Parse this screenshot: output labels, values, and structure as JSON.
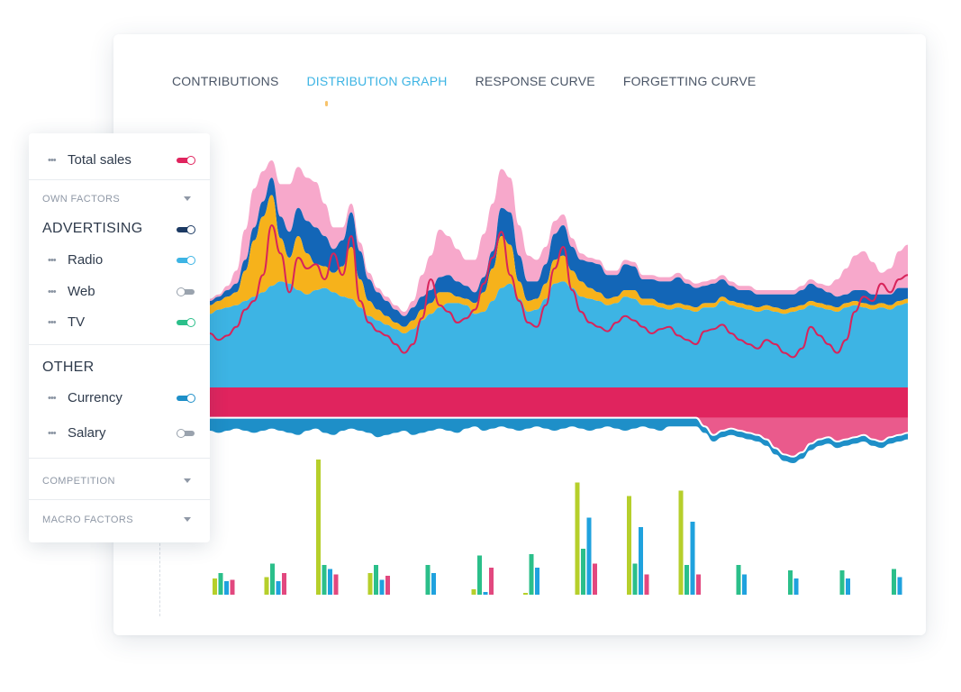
{
  "tabs": [
    {
      "label": "CONTRIBUTIONS",
      "active": false
    },
    {
      "label": "DISTRIBUTION GRAPH",
      "active": true
    },
    {
      "label": "RESPONSE CURVE",
      "active": false
    },
    {
      "label": "FORGETTING CURVE",
      "active": false
    }
  ],
  "panel": {
    "total": {
      "label": "Total sales",
      "on": true,
      "color": "#e0245e"
    },
    "own_factors_label": "OWN FACTORS",
    "advertising": {
      "label": "ADVERTISING",
      "on": true,
      "color": "#1c3a63"
    },
    "radio": {
      "label": "Radio",
      "on": true,
      "color": "#3db4e4"
    },
    "web": {
      "label": "Web",
      "on": false,
      "color": "#9aa3ae"
    },
    "tv": {
      "label": "TV",
      "on": true,
      "color": "#2bbf8a"
    },
    "other_label": "OTHER",
    "currency": {
      "label": "Currency",
      "on": true,
      "color": "#1e8fc8"
    },
    "salary": {
      "label": "Salary",
      "on": false,
      "color": "#9aa3ae"
    },
    "competition_label": "COMPETITION",
    "macro_label": "MACRO FACTORS"
  },
  "chart_data": {
    "type": "area",
    "x": [
      0,
      1,
      2,
      3,
      4,
      5,
      6,
      7,
      8,
      9,
      10,
      11,
      12,
      13,
      14,
      15,
      16,
      17,
      18,
      19,
      20,
      21,
      22,
      23,
      24,
      25,
      26,
      27,
      28,
      29,
      30,
      31,
      32,
      33,
      34,
      35,
      36,
      37,
      38,
      39,
      40,
      41,
      42,
      43,
      44,
      45,
      46,
      47,
      48,
      49,
      50,
      51,
      52,
      53,
      54,
      55,
      56,
      57,
      58,
      59,
      60,
      61,
      62,
      63,
      64,
      65,
      66,
      67,
      68,
      69,
      70,
      71,
      72,
      73,
      74,
      75,
      76,
      77,
      78,
      79
    ],
    "series": [
      {
        "color": "#3db4e4",
        "values": [
          0.34,
          0.36,
          0.37,
          0.38,
          0.4,
          0.42,
          0.44,
          0.47,
          0.49,
          0.48,
          0.45,
          0.43,
          0.45,
          0.46,
          0.44,
          0.42,
          0.41,
          0.37,
          0.33,
          0.31,
          0.29,
          0.27,
          0.25,
          0.27,
          0.31,
          0.34,
          0.37,
          0.39,
          0.39,
          0.38,
          0.34,
          0.35,
          0.4,
          0.46,
          0.48,
          0.41,
          0.35,
          0.36,
          0.41,
          0.48,
          0.49,
          0.46,
          0.42,
          0.41,
          0.4,
          0.38,
          0.39,
          0.42,
          0.41,
          0.38,
          0.38,
          0.37,
          0.36,
          0.37,
          0.36,
          0.35,
          0.37,
          0.37,
          0.4,
          0.38,
          0.37,
          0.36,
          0.35,
          0.36,
          0.35,
          0.34,
          0.35,
          0.36,
          0.38,
          0.37,
          0.36,
          0.35,
          0.37,
          0.38,
          0.37,
          0.36,
          0.37,
          0.36,
          0.38,
          0.39
        ]
      },
      {
        "color": "#f6b21b",
        "values": [
          0.04,
          0.04,
          0.05,
          0.06,
          0.14,
          0.26,
          0.35,
          0.42,
          0.2,
          0.12,
          0.25,
          0.19,
          0.12,
          0.1,
          0.09,
          0.14,
          0.24,
          0.13,
          0.07,
          0.05,
          0.04,
          0.03,
          0.03,
          0.04,
          0.05,
          0.05,
          0.07,
          0.05,
          0.03,
          0.03,
          0.05,
          0.09,
          0.15,
          0.24,
          0.18,
          0.08,
          0.05,
          0.05,
          0.07,
          0.11,
          0.12,
          0.08,
          0.07,
          0.05,
          0.04,
          0.03,
          0.03,
          0.03,
          0.04,
          0.03,
          0.03,
          0.02,
          0.02,
          0.02,
          0.02,
          0.02,
          0.02,
          0.02,
          0.02,
          0.02,
          0.02,
          0.02,
          0.02,
          0.02,
          0.02,
          0.02,
          0.02,
          0.02,
          0.02,
          0.02,
          0.02,
          0.02,
          0.02,
          0.02,
          0.02,
          0.02,
          0.02,
          0.02,
          0.02,
          0.02
        ]
      },
      {
        "color": "#1366b7",
        "values": [
          0.02,
          0.02,
          0.03,
          0.04,
          0.05,
          0.06,
          0.07,
          0.08,
          0.1,
          0.12,
          0.13,
          0.15,
          0.17,
          0.14,
          0.11,
          0.12,
          0.16,
          0.13,
          0.1,
          0.08,
          0.07,
          0.06,
          0.05,
          0.06,
          0.06,
          0.06,
          0.07,
          0.08,
          0.07,
          0.06,
          0.05,
          0.07,
          0.08,
          0.13,
          0.15,
          0.12,
          0.09,
          0.08,
          0.09,
          0.12,
          0.14,
          0.11,
          0.1,
          0.12,
          0.13,
          0.11,
          0.1,
          0.12,
          0.11,
          0.09,
          0.09,
          0.1,
          0.11,
          0.12,
          0.1,
          0.09,
          0.08,
          0.09,
          0.08,
          0.07,
          0.06,
          0.07,
          0.06,
          0.05,
          0.06,
          0.07,
          0.06,
          0.07,
          0.08,
          0.07,
          0.06,
          0.05,
          0.04,
          0.05,
          0.06,
          0.05,
          0.04,
          0.05,
          0.06,
          0.05
        ]
      },
      {
        "color": "#f7a8cb",
        "values": [
          0.01,
          0.01,
          0.02,
          0.06,
          0.14,
          0.18,
          0.14,
          0.08,
          0.15,
          0.22,
          0.19,
          0.2,
          0.21,
          0.15,
          0.1,
          0.06,
          0.04,
          0.04,
          0.03,
          0.02,
          0.02,
          0.02,
          0.02,
          0.03,
          0.1,
          0.16,
          0.22,
          0.18,
          0.15,
          0.12,
          0.15,
          0.2,
          0.22,
          0.18,
          0.16,
          0.14,
          0.12,
          0.1,
          0.08,
          0.06,
          0.05,
          0.04,
          0.03,
          0.02,
          0.02,
          0.02,
          0.02,
          0.02,
          0.02,
          0.02,
          0.02,
          0.02,
          0.02,
          0.02,
          0.02,
          0.02,
          0.02,
          0.02,
          0.02,
          0.02,
          0.02,
          0.02,
          0.02,
          0.02,
          0.02,
          0.02,
          0.02,
          0.02,
          0.02,
          0.02,
          0.03,
          0.08,
          0.12,
          0.16,
          0.18,
          0.15,
          0.1,
          0.12,
          0.17,
          0.2
        ]
      },
      {
        "color": "#e0245e",
        "values": [
          -0.14,
          -0.14,
          -0.14,
          -0.14,
          -0.14,
          -0.14,
          -0.14,
          -0.14,
          -0.14,
          -0.14,
          -0.14,
          -0.14,
          -0.14,
          -0.14,
          -0.14,
          -0.14,
          -0.14,
          -0.14,
          -0.14,
          -0.14,
          -0.14,
          -0.14,
          -0.14,
          -0.14,
          -0.14,
          -0.14,
          -0.14,
          -0.14,
          -0.14,
          -0.14,
          -0.14,
          -0.14,
          -0.14,
          -0.14,
          -0.14,
          -0.14,
          -0.14,
          -0.14,
          -0.14,
          -0.14,
          -0.14,
          -0.14,
          -0.14,
          -0.14,
          -0.14,
          -0.14,
          -0.14,
          -0.14,
          -0.14,
          -0.14,
          -0.14,
          -0.14,
          -0.14,
          -0.14,
          -0.14,
          -0.14,
          -0.14,
          -0.14,
          -0.14,
          -0.14,
          -0.14,
          -0.14,
          -0.14,
          -0.14,
          -0.14,
          -0.14,
          -0.14,
          -0.14,
          -0.14,
          -0.14,
          -0.14,
          -0.14,
          -0.14,
          -0.14,
          -0.14,
          -0.14,
          -0.14,
          -0.14,
          -0.14,
          -0.14
        ]
      },
      {
        "color": "#ea5a8c",
        "values": [
          0,
          0,
          0,
          0,
          0,
          0,
          0,
          0,
          0,
          0,
          0,
          0,
          0,
          0,
          0,
          0,
          0,
          0,
          0,
          0,
          0,
          0,
          0,
          0,
          0,
          0,
          0,
          0,
          0,
          0,
          0,
          0,
          0,
          0,
          0,
          0,
          0,
          0,
          0,
          0,
          0,
          0,
          0,
          0,
          0,
          0,
          0,
          0,
          0,
          0,
          0,
          0,
          0,
          0,
          0,
          0,
          -0.04,
          -0.08,
          -0.06,
          -0.05,
          -0.06,
          -0.07,
          -0.08,
          -0.1,
          -0.14,
          -0.17,
          -0.18,
          -0.16,
          -0.12,
          -0.1,
          -0.09,
          -0.11,
          -0.1,
          -0.09,
          -0.08,
          -0.1,
          -0.11,
          -0.09,
          -0.08,
          -0.07
        ]
      },
      {
        "color": "#1e8fc8",
        "values": [
          -0.06,
          -0.07,
          -0.06,
          -0.05,
          -0.06,
          -0.07,
          -0.06,
          -0.05,
          -0.06,
          -0.07,
          -0.08,
          -0.06,
          -0.05,
          -0.07,
          -0.08,
          -0.06,
          -0.05,
          -0.06,
          -0.07,
          -0.09,
          -0.08,
          -0.07,
          -0.06,
          -0.08,
          -0.07,
          -0.06,
          -0.05,
          -0.06,
          -0.07,
          -0.05,
          -0.04,
          -0.06,
          -0.05,
          -0.04,
          -0.05,
          -0.06,
          -0.05,
          -0.04,
          -0.05,
          -0.06,
          -0.05,
          -0.04,
          -0.05,
          -0.06,
          -0.05,
          -0.04,
          -0.05,
          -0.06,
          -0.05,
          -0.04,
          -0.05,
          -0.06,
          -0.04,
          -0.04,
          -0.04,
          -0.04,
          -0.03,
          -0.03,
          -0.03,
          -0.03,
          -0.03,
          -0.03,
          -0.03,
          -0.03,
          -0.03,
          -0.03,
          -0.03,
          -0.03,
          -0.03,
          -0.03,
          -0.03,
          -0.03,
          -0.03,
          -0.03,
          -0.03,
          -0.03,
          -0.03,
          -0.03,
          -0.03,
          -0.03
        ]
      }
    ],
    "total_sales_line": {
      "color": "#d8245b",
      "values": [
        0.25,
        0.22,
        0.24,
        0.28,
        0.36,
        0.4,
        0.52,
        0.75,
        0.62,
        0.44,
        0.6,
        0.55,
        0.57,
        0.5,
        0.62,
        0.52,
        0.7,
        0.4,
        0.3,
        0.26,
        0.24,
        0.2,
        0.16,
        0.2,
        0.32,
        0.5,
        0.38,
        0.35,
        0.3,
        0.32,
        0.36,
        0.48,
        0.6,
        0.72,
        0.52,
        0.4,
        0.3,
        0.28,
        0.38,
        0.55,
        0.65,
        0.45,
        0.35,
        0.3,
        0.28,
        0.26,
        0.3,
        0.33,
        0.31,
        0.28,
        0.25,
        0.27,
        0.28,
        0.24,
        0.22,
        0.2,
        0.26,
        0.27,
        0.29,
        0.25,
        0.22,
        0.2,
        0.18,
        0.22,
        0.2,
        0.16,
        0.14,
        0.18,
        0.28,
        0.24,
        0.2,
        0.16,
        0.22,
        0.35,
        0.42,
        0.4,
        0.48,
        0.44,
        0.5,
        0.52
      ]
    },
    "bar_groups": {
      "colors": [
        "#b6cf2b",
        "#2bbf8a",
        "#1fa2de",
        "#e2487f"
      ],
      "values": [
        [
          0.12,
          0.16,
          0.1,
          0.11
        ],
        [
          0.13,
          0.23,
          0.1,
          0.16
        ],
        [
          1.0,
          0.22,
          0.19,
          0.15
        ],
        [
          0.16,
          0.22,
          0.11,
          0.14
        ],
        [
          0.0,
          0.22,
          0.16,
          0.0
        ],
        [
          0.04,
          0.29,
          0.02,
          0.2
        ],
        [
          0.01,
          0.3,
          0.2,
          0.0
        ],
        [
          0.83,
          0.34,
          0.57,
          0.23
        ],
        [
          0.73,
          0.23,
          0.5,
          0.15
        ],
        [
          0.77,
          0.22,
          0.54,
          0.15
        ],
        [
          0.0,
          0.22,
          0.15,
          0.0
        ],
        [
          0.0,
          0.18,
          0.12,
          0.0
        ],
        [
          0.0,
          0.18,
          0.12,
          0.0
        ],
        [
          0.0,
          0.19,
          0.13,
          0.0
        ]
      ]
    }
  }
}
